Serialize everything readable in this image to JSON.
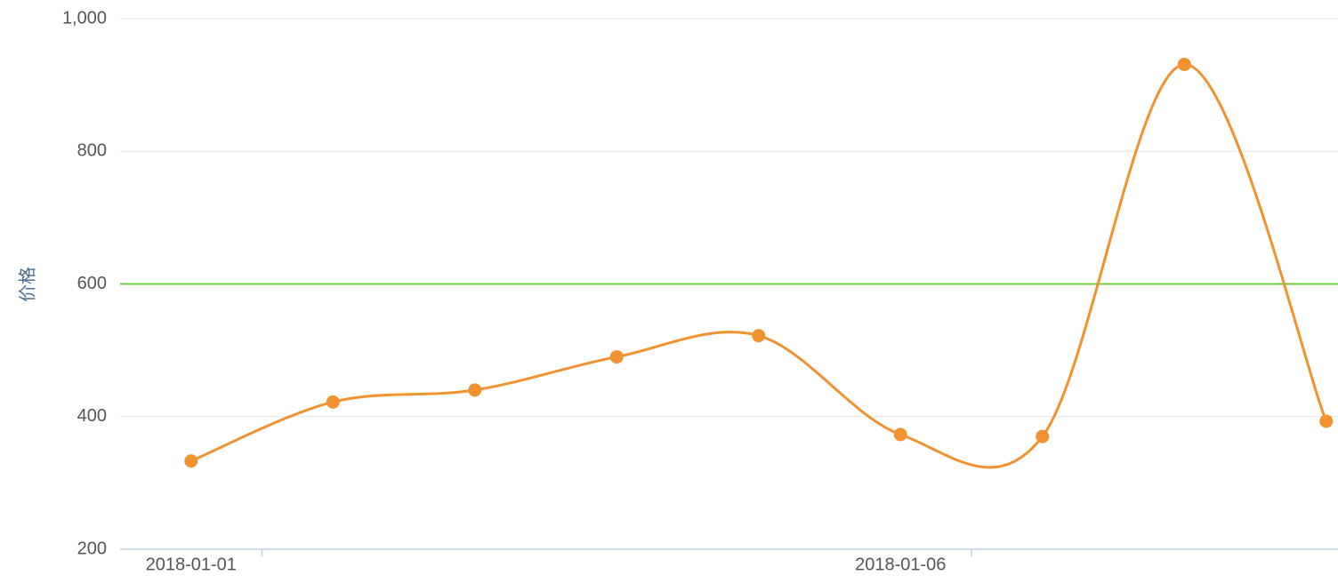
{
  "chart_data": {
    "type": "spline",
    "y_axis_title": "价格",
    "categories": [
      "2018-01-01",
      null,
      null,
      null,
      null,
      "2018-01-06",
      null,
      null,
      null
    ],
    "series": [
      {
        "name": "价格",
        "color": "#f0922f",
        "values": [
          333,
          422,
          440,
          490,
          522,
          373,
          370,
          931,
          393
        ]
      }
    ],
    "ylim": [
      200,
      1000
    ],
    "yticks": [
      200,
      400,
      600,
      800,
      {
        "value": 1000,
        "label": "1,000"
      }
    ],
    "grid": true,
    "plot_lines": [
      {
        "value": 600,
        "color": "#6ccb44"
      }
    ]
  }
}
